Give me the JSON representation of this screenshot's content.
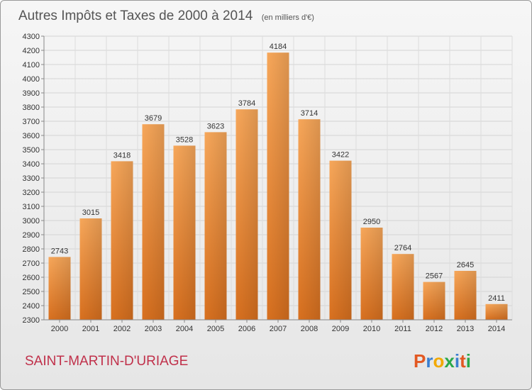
{
  "chart_data": {
    "type": "bar",
    "title": "Autres Impôts et Taxes de 2000 à 2014",
    "subtitle": "(en milliers d'€)",
    "categories": [
      "2000",
      "2001",
      "2002",
      "2003",
      "2004",
      "2005",
      "2006",
      "2007",
      "2008",
      "2009",
      "2010",
      "2011",
      "2012",
      "2013",
      "2014"
    ],
    "values": [
      2743,
      3015,
      3418,
      3679,
      3528,
      3623,
      3784,
      4184,
      3714,
      3422,
      2950,
      2764,
      2567,
      2645,
      2411
    ],
    "ylim": [
      2300,
      4300
    ],
    "yticks": [
      2300,
      2400,
      2500,
      2600,
      2700,
      2800,
      2900,
      3000,
      3100,
      3200,
      3300,
      3400,
      3500,
      3600,
      3700,
      3800,
      3900,
      4000,
      4100,
      4200,
      4300
    ],
    "grid": true,
    "bar_color": "#f0913a",
    "xlabel": "",
    "ylabel": ""
  },
  "commune": "SAINT-MARTIN-D'URIAGE",
  "logo": {
    "letters": [
      "P",
      "r",
      "o",
      "x",
      "i",
      "t",
      "i"
    ],
    "colors": [
      "#e25822",
      "#3a7fd0",
      "#f2a900",
      "#2aa84a",
      "#3a7fd0",
      "#e25822",
      "#2aa84a"
    ]
  }
}
